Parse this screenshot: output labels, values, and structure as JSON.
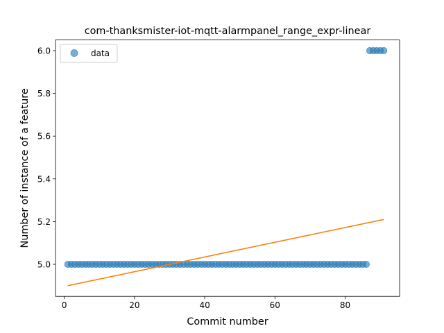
{
  "chart_data": {
    "type": "scatter",
    "title": "com-thanksmister-iot-mqtt-alarmpanel_range_expr-linear",
    "xlabel": "Commit number",
    "ylabel": "Number of instance of a feature",
    "xlim": [
      -2.5,
      95.5
    ],
    "ylim": [
      4.85,
      6.05
    ],
    "xticks": [
      0,
      20,
      40,
      60,
      80
    ],
    "xtick_labels": [
      "0",
      "20",
      "40",
      "60",
      "80"
    ],
    "yticks": [
      5.0,
      5.2,
      5.4,
      5.6,
      5.8,
      6.0
    ],
    "ytick_labels": [
      "5.0",
      "5.2",
      "5.4",
      "5.6",
      "5.8",
      "6.0"
    ],
    "grid": false,
    "legend": {
      "position": "top-left",
      "entries": [
        "data"
      ]
    },
    "series": [
      {
        "name": "data",
        "kind": "scatter",
        "color": "#1f77b4",
        "alpha": 0.6,
        "groups": [
          {
            "x_start": 1,
            "x_end": 86,
            "y": 5.0
          },
          {
            "x_start": 87,
            "x_end": 91,
            "y": 6.0
          }
        ]
      },
      {
        "kind": "line",
        "color": "#ff7f0e",
        "x": [
          1,
          91
        ],
        "y": [
          4.9,
          5.21
        ]
      }
    ]
  }
}
